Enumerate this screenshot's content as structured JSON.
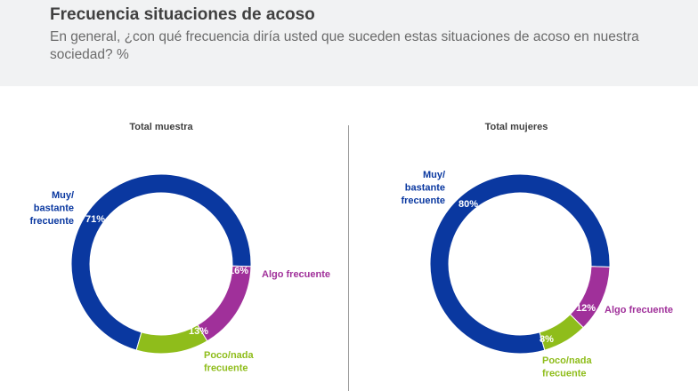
{
  "header": {
    "title": "Frecuencia situaciones de acoso",
    "subtitle": "En general, ¿con qué frecuencia diría usted que suceden estas situaciones de acoso en nuestra sociedad? %"
  },
  "colors": {
    "muy": "#0a38a0",
    "algo": "#a0309a",
    "poco": "#8fbd1b",
    "header_bg": "#f1f2f3"
  },
  "chart_data": [
    {
      "type": "pie",
      "variant": "donut",
      "title": "Total muestra",
      "categories": [
        "Muy/\nbastante\nfrecuente",
        "Algo frecuente",
        "Poco/nada\nfrecuente"
      ],
      "values": [
        71,
        16,
        13
      ],
      "labels": [
        "71%",
        "16%",
        "13%"
      ]
    },
    {
      "type": "pie",
      "variant": "donut",
      "title": "Total mujeres",
      "categories": [
        "Muy/\nbastante\nfrecuente",
        "Algo frecuente",
        "Poco/nada\nfrecuente"
      ],
      "values": [
        80,
        12,
        8
      ],
      "labels": [
        "80%",
        "12%",
        "8%"
      ]
    }
  ]
}
